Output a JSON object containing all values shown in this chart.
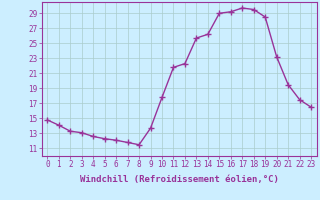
{
  "x": [
    0,
    1,
    2,
    3,
    4,
    5,
    6,
    7,
    8,
    9,
    10,
    11,
    12,
    13,
    14,
    15,
    16,
    17,
    18,
    19,
    20,
    21,
    22,
    23
  ],
  "y": [
    14.8,
    14.1,
    13.3,
    13.1,
    12.6,
    12.3,
    12.1,
    11.8,
    11.5,
    13.7,
    17.8,
    21.8,
    22.3,
    25.7,
    26.2,
    29.0,
    29.2,
    29.7,
    29.5,
    28.5,
    23.2,
    19.5,
    17.5,
    16.5
  ],
  "line_color": "#993399",
  "marker": "+",
  "marker_size": 4,
  "marker_lw": 1.0,
  "bg_color": "#CCEEFF",
  "grid_color": "#AACCCC",
  "xlabel": "Windchill (Refroidissement éolien,°C)",
  "xlabel_fontsize": 6.5,
  "ytick_labels": [
    "11",
    "13",
    "15",
    "17",
    "19",
    "21",
    "23",
    "25",
    "27",
    "29"
  ],
  "ytick_vals": [
    11,
    13,
    15,
    17,
    19,
    21,
    23,
    25,
    27,
    29
  ],
  "xtick_vals": [
    0,
    1,
    2,
    3,
    4,
    5,
    6,
    7,
    8,
    9,
    10,
    11,
    12,
    13,
    14,
    15,
    16,
    17,
    18,
    19,
    20,
    21,
    22,
    23
  ],
  "ylim": [
    10.0,
    30.5
  ],
  "xlim": [
    -0.5,
    23.5
  ],
  "tick_fontsize": 5.5,
  "tick_color": "#993399",
  "spine_color": "#993399",
  "linewidth": 1.0
}
